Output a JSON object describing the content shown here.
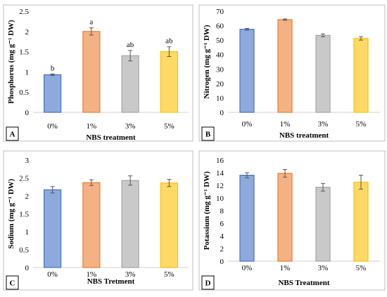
{
  "chart_data": [
    {
      "type": "bar",
      "panel_label": "A",
      "categories": [
        "0%",
        "1%",
        "3%",
        "5%"
      ],
      "values": [
        0.93,
        2.0,
        1.4,
        1.5
      ],
      "errors": [
        0.02,
        0.09,
        0.13,
        0.12
      ],
      "letters": [
        "b",
        "a",
        "ab",
        "ab"
      ],
      "xlabel": "NBS treatment",
      "ylabel": "Phosphorus (mg g⁻¹ DW)",
      "ylim": [
        0,
        2.5
      ],
      "yticks": [
        0,
        0.5,
        1,
        1.5,
        2,
        2.5
      ],
      "ytick_labels": [
        "0",
        "0.5",
        "1",
        "1.5",
        "2",
        "2.5"
      ],
      "grid": false
    },
    {
      "type": "bar",
      "panel_label": "B",
      "categories": [
        "0%",
        "1%",
        "3%",
        "5%"
      ],
      "values": [
        57.5,
        64.2,
        53.3,
        51.2
      ],
      "errors": [
        0.6,
        0.5,
        1.0,
        1.2
      ],
      "letters": [],
      "xlabel": "NBS treatment",
      "ylabel": "Nitrogen (mg g⁻¹ DW)",
      "ylim": [
        0,
        70
      ],
      "yticks": [
        0,
        10,
        20,
        30,
        40,
        50,
        60,
        70
      ],
      "ytick_labels": [
        "0",
        "10",
        "20",
        "30",
        "40",
        "50",
        "60",
        "70"
      ],
      "grid": false
    },
    {
      "type": "bar",
      "panel_label": "C",
      "categories": [
        "0%",
        "1%",
        "3%",
        "5%"
      ],
      "values": [
        2.17,
        2.37,
        2.43,
        2.36
      ],
      "errors": [
        0.09,
        0.08,
        0.13,
        0.1
      ],
      "letters": [],
      "xlabel": "NBS Tretment",
      "ylabel": "Sodium (mg g⁻¹ DW)",
      "ylim": [
        0,
        3
      ],
      "yticks": [
        0,
        0.5,
        1,
        1.5,
        2,
        2.5,
        3
      ],
      "ytick_labels": [
        "0",
        "0.5",
        "1",
        "1.5",
        "2",
        "2.5",
        "3"
      ],
      "grid": false
    },
    {
      "type": "bar",
      "panel_label": "D",
      "categories": [
        "0%",
        "1%",
        "3%",
        "5%"
      ],
      "values": [
        13.6,
        13.9,
        11.7,
        12.5
      ],
      "errors": [
        0.4,
        0.6,
        0.6,
        1.1
      ],
      "letters": [],
      "xlabel": "NBS Treatment",
      "ylabel": "Potassium (mg g⁻¹ DW)",
      "ylim": [
        0,
        16
      ],
      "yticks": [
        0,
        2,
        4,
        6,
        8,
        10,
        12,
        14,
        16
      ],
      "ytick_labels": [
        "0",
        "2",
        "4",
        "6",
        "8",
        "10",
        "12",
        "14",
        "16"
      ],
      "grid": false
    }
  ],
  "colors": {
    "series": [
      "#8ea9db",
      "#f4b183",
      "#c9c9c9",
      "#ffd966"
    ],
    "series_edge": [
      "#4472c4",
      "#ed7d31",
      "#a5a5a5",
      "#ffc000"
    ],
    "frame": "#bfbfbf",
    "axis": "#d0d0d0"
  }
}
